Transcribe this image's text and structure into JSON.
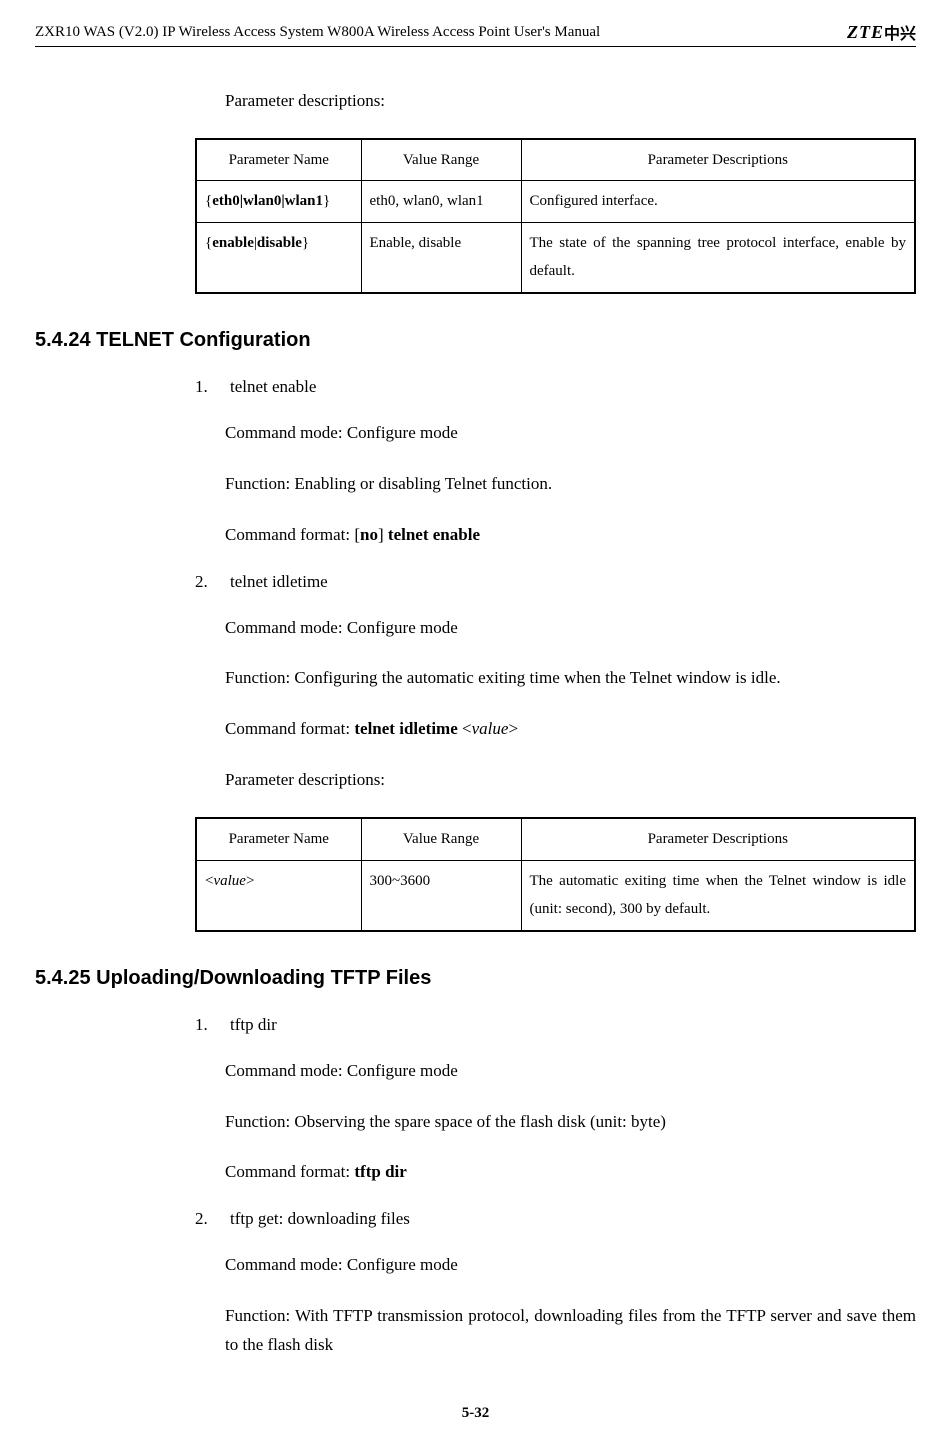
{
  "header": {
    "title": "ZXR10 WAS (V2.0) IP Wireless Access System W800A Wireless Access Point User's Manual",
    "logo_text": "ZTE",
    "logo_cn": "中兴"
  },
  "intro_para": "Parameter descriptions:",
  "table1": {
    "headers": [
      "Parameter Name",
      "Value Range",
      "Parameter Descriptions"
    ],
    "row1": {
      "name_open": "{",
      "name_bold": "eth0|wlan0|wlan1",
      "name_close": "}",
      "range": "eth0, wlan0, wlan1",
      "desc": "Configured interface."
    },
    "row2": {
      "name_open": "{",
      "name_bold": "enable",
      "name_pipe": "|",
      "name_bold2": "disable",
      "name_close": "}",
      "range": "Enable, disable",
      "desc": "The state of the spanning tree protocol interface, enable by default."
    }
  },
  "section_telnet": {
    "heading": "5.4.24 TELNET Configuration",
    "item1": {
      "num": "1.",
      "title": "telnet enable",
      "mode": "Command mode: Configure mode",
      "func": "Function: Enabling or disabling Telnet function.",
      "fmt_prefix": "Command format: [",
      "fmt_no": "no",
      "fmt_mid": "] ",
      "fmt_cmd": "telnet enable"
    },
    "item2": {
      "num": "2.",
      "title": "telnet idletime",
      "mode": "Command mode: Configure mode",
      "func": "Function: Configuring the automatic exiting time when the Telnet window is idle.",
      "fmt_prefix": "Command format: ",
      "fmt_cmd": "telnet idletime",
      "fmt_space": " <",
      "fmt_value": "value",
      "fmt_close": ">",
      "params": "Parameter descriptions:"
    }
  },
  "table2": {
    "headers": [
      "Parameter Name",
      "Value Range",
      "Parameter Descriptions"
    ],
    "row1": {
      "name_open": "<",
      "name_italic": "value",
      "name_close": ">",
      "range": "300~3600",
      "desc": "The automatic exiting time when the Telnet window is idle (unit: second), 300 by default."
    }
  },
  "section_tftp": {
    "heading": "5.4.25 Uploading/Downloading TFTP Files",
    "item1": {
      "num": "1.",
      "title": "tftp dir",
      "mode": "Command mode: Configure mode",
      "func": "Function: Observing the spare space of the flash disk (unit: byte)",
      "fmt_prefix": "Command format: ",
      "fmt_cmd": "tftp dir"
    },
    "item2": {
      "num": "2.",
      "title": "tftp get: downloading files",
      "mode": "Command mode: Configure mode",
      "func": "Function: With TFTP transmission protocol, downloading files from the TFTP server and save them to the flash disk"
    }
  },
  "page_num": "5-32"
}
